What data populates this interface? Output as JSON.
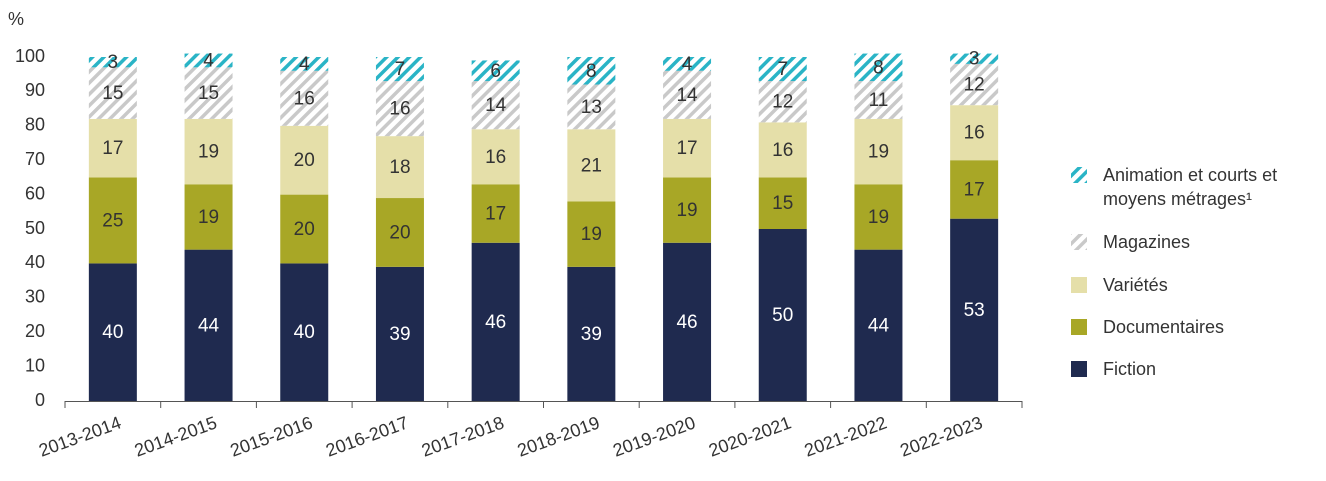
{
  "chart_data": {
    "type": "stacked_bar",
    "y_axis_label": "%",
    "categories": [
      "2013-2014",
      "2014-2015",
      "2015-2016",
      "2016-2017",
      "2017-2018",
      "2018-2019",
      "2019-2020",
      "2020-2021",
      "2021-2022",
      "2022-2023"
    ],
    "series": [
      {
        "name": "Fiction",
        "color": "#1f2a4f",
        "label_color": "#ffffff",
        "values": [
          40,
          44,
          40,
          39,
          46,
          39,
          46,
          50,
          44,
          53
        ]
      },
      {
        "name": "Documentaires",
        "color": "#a8a726",
        "label_color": "#333333",
        "values": [
          25,
          19,
          20,
          20,
          17,
          19,
          19,
          15,
          19,
          17
        ]
      },
      {
        "name": "Variétés",
        "color": "#e5dfa9",
        "label_color": "#333333",
        "values": [
          17,
          19,
          20,
          18,
          16,
          21,
          17,
          16,
          19,
          16
        ]
      },
      {
        "name": "Magazines",
        "color": "#c9c9c9",
        "hatch": true,
        "label_color": "#333333",
        "values": [
          15,
          15,
          16,
          16,
          14,
          13,
          14,
          12,
          11,
          12
        ]
      },
      {
        "name": "Animation et courts et moyens métrages¹",
        "color": "#2ab4c6",
        "hatch": true,
        "label_color": "#333333",
        "values": [
          3,
          4,
          4,
          7,
          6,
          8,
          4,
          7,
          8,
          3
        ]
      }
    ],
    "ylim": [
      0,
      100
    ],
    "yticks": [
      0,
      10,
      20,
      30,
      40,
      50,
      60,
      70,
      80,
      90,
      100
    ],
    "legend": "right"
  }
}
